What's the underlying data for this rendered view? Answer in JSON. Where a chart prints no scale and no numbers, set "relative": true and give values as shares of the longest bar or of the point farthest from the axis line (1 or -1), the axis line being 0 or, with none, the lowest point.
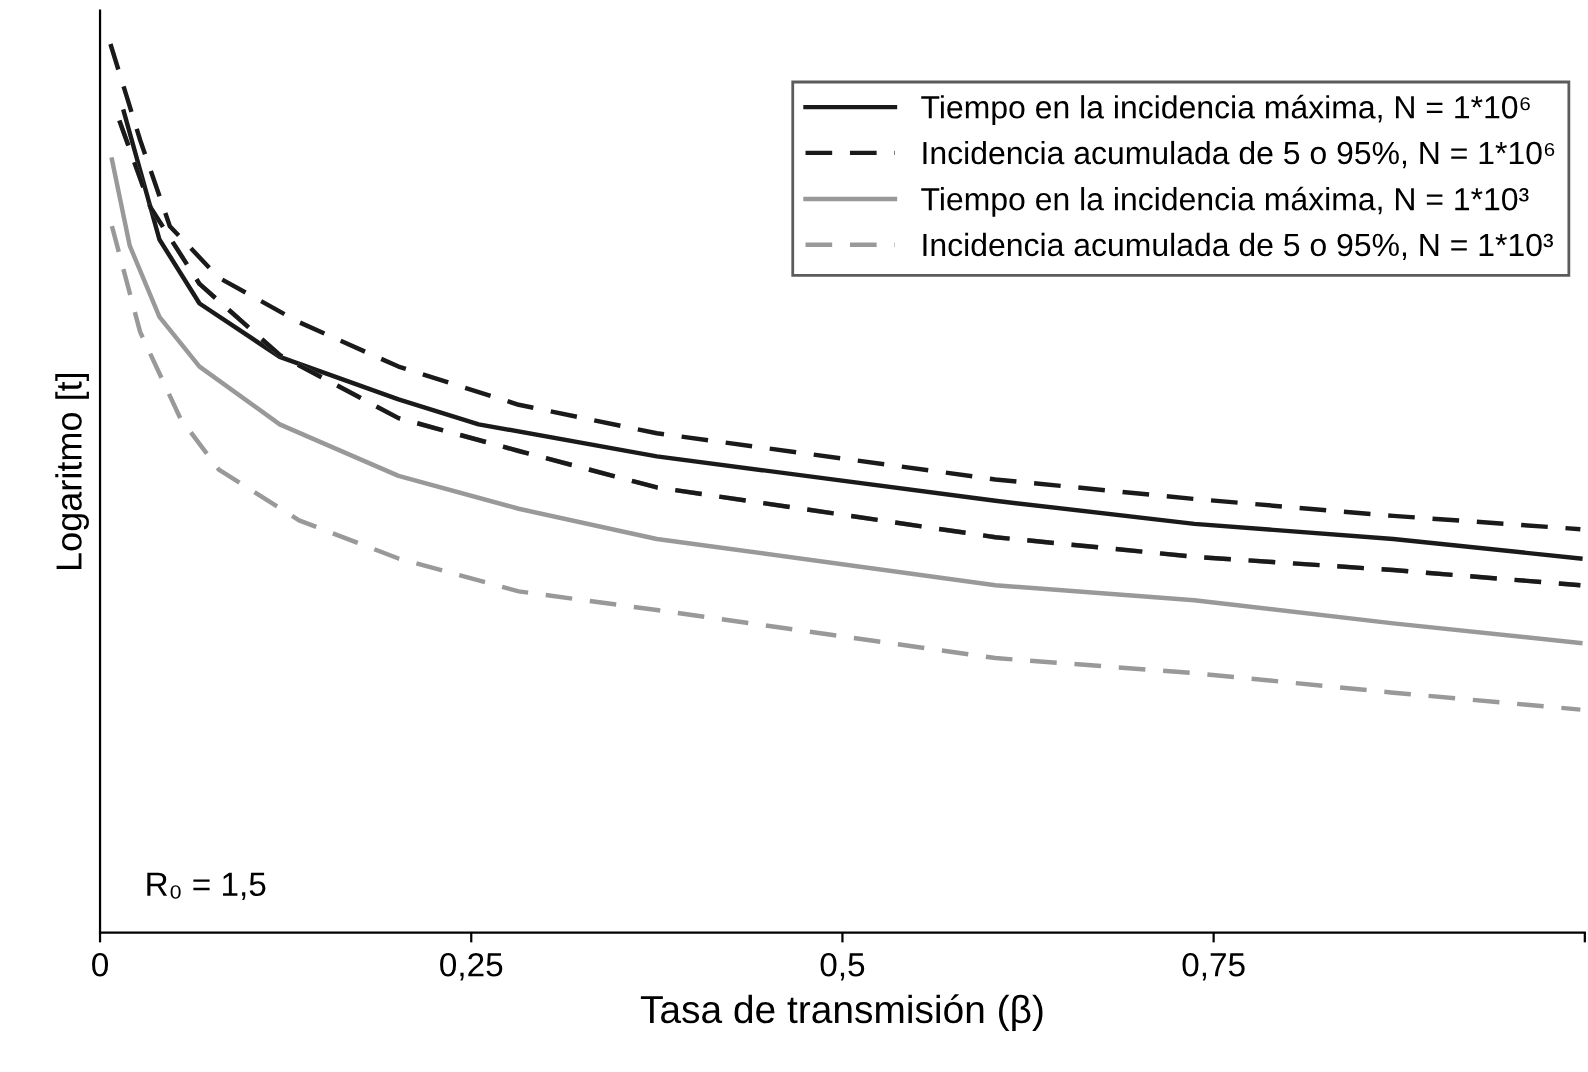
{
  "chart_data": {
    "type": "line",
    "relative": true,
    "xlabel": "Tasa de transmisión (β)",
    "ylabel": "Logaritmo [t]",
    "annotations": [
      "R₀ = 1,5"
    ],
    "xlim": [
      0,
      1
    ],
    "xticks": [
      {
        "value": 0,
        "label": "0"
      },
      {
        "value": 0.25,
        "label": "0,25"
      },
      {
        "value": 0.5,
        "label": "0,5"
      },
      {
        "value": 0.75,
        "label": "0,75"
      },
      {
        "value": 1,
        "label": null
      }
    ],
    "legend": "top right",
    "grid": false,
    "marker": "none",
    "series": [
      {
        "name": "Tiempo en la incidencia máxima, N = 1*10⁶",
        "color": "#1a1a1a",
        "line_style": "solid",
        "x": [
          0.016,
          0.04,
          0.067,
          0.121,
          0.201,
          0.255,
          0.375,
          0.603,
          0.737,
          0.871,
          0.997
        ],
        "values": [
          0.924,
          0.78,
          0.708,
          0.648,
          0.6,
          0.572,
          0.536,
          0.486,
          0.46,
          0.443,
          0.421
        ]
      },
      {
        "name": "Incidencia acumulada de 5 o 95%, N = 1*10⁶",
        "color": "#1a1a1a",
        "line_style": "dashed",
        "x": [
          0.007,
          0.027,
          0.047,
          0.08,
          0.134,
          0.201,
          0.282,
          0.375,
          0.603,
          0.737,
          0.871,
          0.997
        ],
        "values": [
          1,
          0.892,
          0.795,
          0.737,
          0.687,
          0.637,
          0.594,
          0.562,
          0.51,
          0.488,
          0.469,
          0.454
        ]
      },
      {
        "name": "Tiempo en la incidencia máxima, N = 1*10³",
        "color": "#999999",
        "line_style": "solid",
        "x": [
          0.008,
          0.02,
          0.04,
          0.067,
          0.121,
          0.201,
          0.282,
          0.375,
          0.603,
          0.737,
          0.871,
          0.997
        ],
        "values": [
          0.87,
          0.773,
          0.693,
          0.637,
          0.572,
          0.514,
          0.477,
          0.443,
          0.391,
          0.374,
          0.348,
          0.326
        ]
      },
      {
        "name": "Incidencia acumulada de 5 o 95%, N = 1*10³",
        "color": "#999999",
        "line_style": "dashed",
        "x": [
          0.008,
          0.027,
          0.054,
          0.08,
          0.134,
          0.201,
          0.282,
          0.375,
          0.603,
          0.737,
          0.871,
          0.997
        ],
        "values": [
          0.795,
          0.676,
          0.579,
          0.521,
          0.464,
          0.421,
          0.384,
          0.363,
          0.309,
          0.292,
          0.27,
          0.251
        ]
      },
      {
        "color": "#999999",
        "line_style": "dashed",
        "x": [
          0.013,
          0.034,
          0.067,
          0.121,
          0.201,
          0.282,
          0.375,
          0.603,
          0.737,
          0.871,
          0.997
        ],
        "values": [
          0.914,
          0.816,
          0.73,
          0.65,
          0.579,
          0.542,
          0.501,
          0.445,
          0.423,
          0.408,
          0.391
        ]
      },
      {
        "color": "#1a1a1a",
        "line_style": "dashed",
        "x": [
          0.013,
          0.034,
          0.067,
          0.121,
          0.201,
          0.282,
          0.375,
          0.603,
          0.737,
          0.871,
          0.997
        ],
        "values": [
          0.914,
          0.816,
          0.73,
          0.65,
          0.579,
          0.542,
          0.501,
          0.445,
          0.423,
          0.408,
          0.391
        ]
      }
    ]
  }
}
